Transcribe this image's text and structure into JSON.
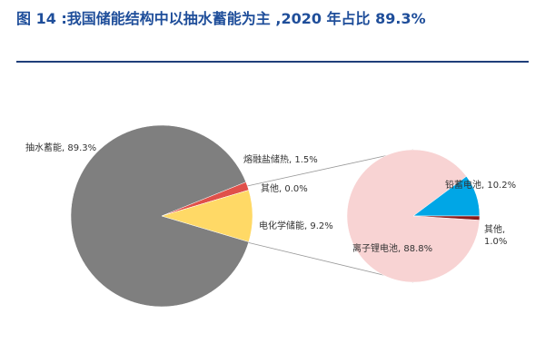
{
  "title": "图 14 :我国储能结构中以抽水蓄能为主 ,2020 年占比 89.3%",
  "chart_data": [
    {
      "type": "pie",
      "values": [
        89.3,
        1.5,
        0.0,
        9.2
      ],
      "value_labels": [
        "抽水蓄能, 89.3%",
        "熔融盐储热, 1.5%",
        "其他, 0.0%",
        "电化学储能, 9.2%"
      ],
      "colors": [
        "#7f7f7f",
        "#e0504a",
        "#c0c0c0",
        "#ffd966"
      ]
    },
    {
      "type": "pie",
      "values": [
        88.8,
        10.2,
        1.0
      ],
      "value_labels": [
        "离子锂电池, 88.8%",
        "铅蓄电池, 10.2%",
        "其他, 1.0%"
      ],
      "colors": [
        "#f8d3d3",
        "#00a6e6",
        "#8b1a1a"
      ]
    }
  ]
}
